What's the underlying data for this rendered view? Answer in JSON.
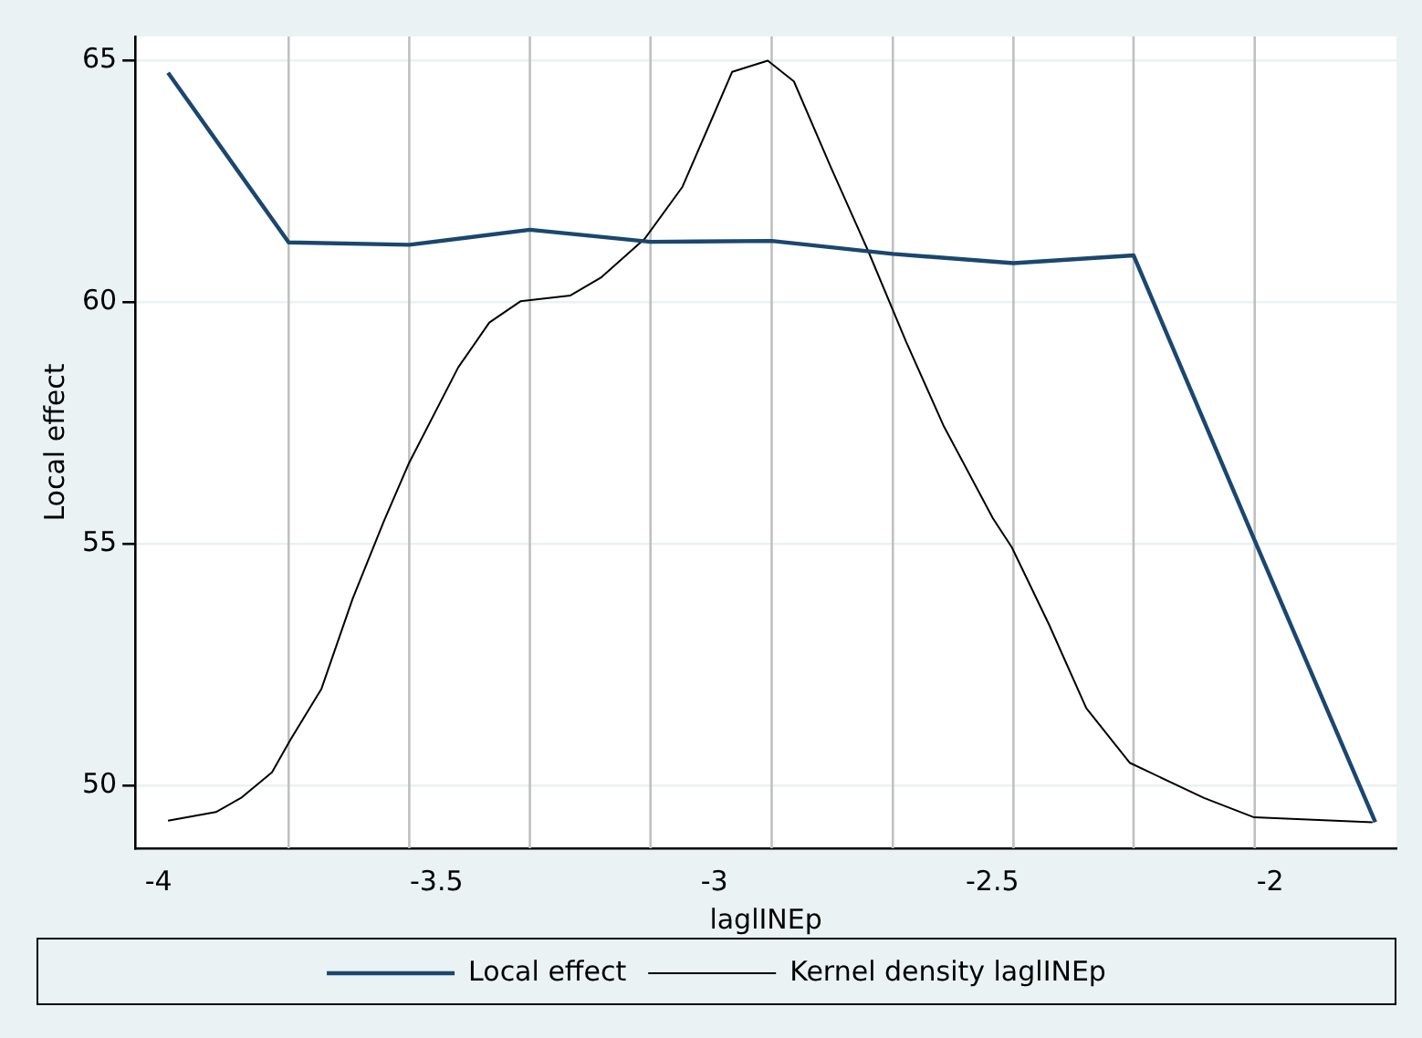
{
  "chart_data": {
    "type": "line",
    "xlabel": "laglINEp",
    "ylabel": "Local effect",
    "xlim": [
      -4.042,
      -1.773
    ],
    "xticks": [
      -4,
      -3.5,
      -3,
      -2.5,
      -2
    ],
    "ylim": [
      48.7,
      65.5
    ],
    "yticks": [
      50,
      55,
      60,
      65
    ],
    "grid": "y",
    "legend": "bottom",
    "marker": "none",
    "line_style": "solid",
    "ref_lines": [
      {
        "axis": "x",
        "value": -3.766,
        "color": "#c0c0c0"
      },
      {
        "axis": "x",
        "value": -3.549,
        "color": "#c0c0c0"
      },
      {
        "axis": "x",
        "value": -3.332,
        "color": "#c0c0c0"
      },
      {
        "axis": "x",
        "value": -3.115,
        "color": "#c0c0c0"
      },
      {
        "axis": "x",
        "value": -2.897,
        "color": "#c0c0c0"
      },
      {
        "axis": "x",
        "value": -2.679,
        "color": "#c0c0c0"
      },
      {
        "axis": "x",
        "value": -2.462,
        "color": "#c0c0c0"
      },
      {
        "axis": "x",
        "value": -2.246,
        "color": "#c0c0c0"
      },
      {
        "axis": "x",
        "value": -2.028,
        "color": "#c0c0c0"
      }
    ],
    "series": [
      {
        "name": "Local effect",
        "color": "#1a476f",
        "x": [
          -3.983,
          -3.766,
          -3.549,
          -3.332,
          -3.115,
          -2.897,
          -2.679,
          -2.462,
          -2.246,
          -2.028,
          -1.811
        ],
        "values": [
          64.75,
          61.24,
          61.19,
          61.5,
          61.25,
          61.27,
          61.0,
          60.81,
          60.97,
          55.07,
          49.24
        ]
      },
      {
        "name": "Kernel density laglINEp",
        "color": "#000000",
        "x": [
          -3.983,
          -3.897,
          -3.852,
          -3.796,
          -3.763,
          -3.707,
          -3.651,
          -3.595,
          -3.55,
          -3.461,
          -3.405,
          -3.349,
          -3.259,
          -3.203,
          -3.125,
          -3.058,
          -3.013,
          -2.968,
          -2.904,
          -2.857,
          -2.79,
          -2.723,
          -2.655,
          -2.588,
          -2.499,
          -2.465,
          -2.398,
          -2.331,
          -2.253,
          -2.119,
          -2.029,
          -1.816
        ],
        "values": [
          49.27,
          49.45,
          49.74,
          50.27,
          50.94,
          52.0,
          53.86,
          55.46,
          56.66,
          58.65,
          59.58,
          60.02,
          60.14,
          60.52,
          61.32,
          62.38,
          63.57,
          64.77,
          65.0,
          64.57,
          62.78,
          61.05,
          59.18,
          57.45,
          55.53,
          54.93,
          53.33,
          51.6,
          50.47,
          49.74,
          49.34,
          49.24
        ]
      }
    ]
  }
}
